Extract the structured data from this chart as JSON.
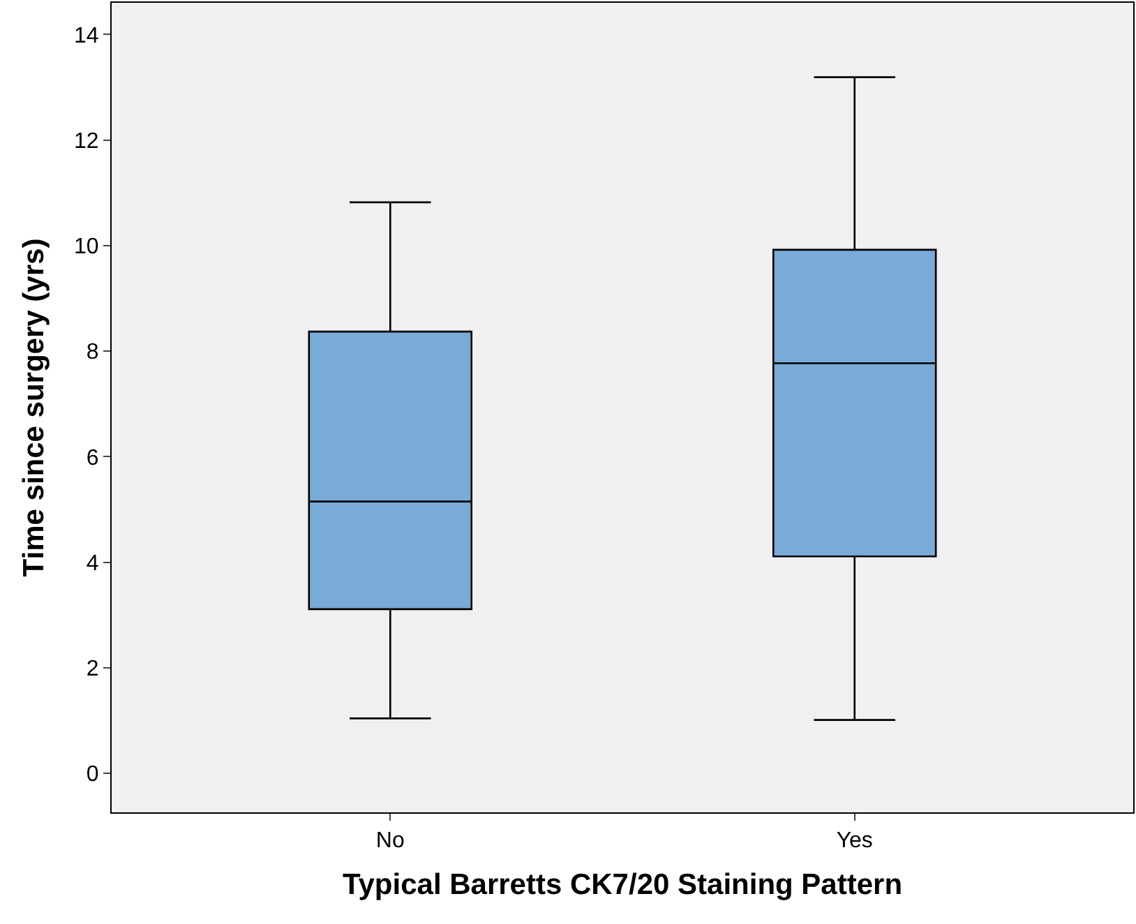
{
  "chart_data": {
    "type": "box",
    "xlabel": "Typical Barretts CK7/20 Staining Pattern",
    "ylabel": "Time since surgery (yrs)",
    "categories": [
      "No",
      "Yes"
    ],
    "boxes": [
      {
        "low": 1.04,
        "q1": 3.11,
        "median": 5.15,
        "q3": 8.37,
        "high": 10.82
      },
      {
        "low": 1.01,
        "q1": 4.11,
        "median": 7.77,
        "q3": 9.92,
        "high": 13.19
      }
    ],
    "color": "#7aaad8",
    "ylim": [
      -0.74,
      14.6
    ],
    "yticks": [
      0,
      2,
      4,
      6,
      8,
      10,
      12,
      14
    ],
    "grid": false
  }
}
